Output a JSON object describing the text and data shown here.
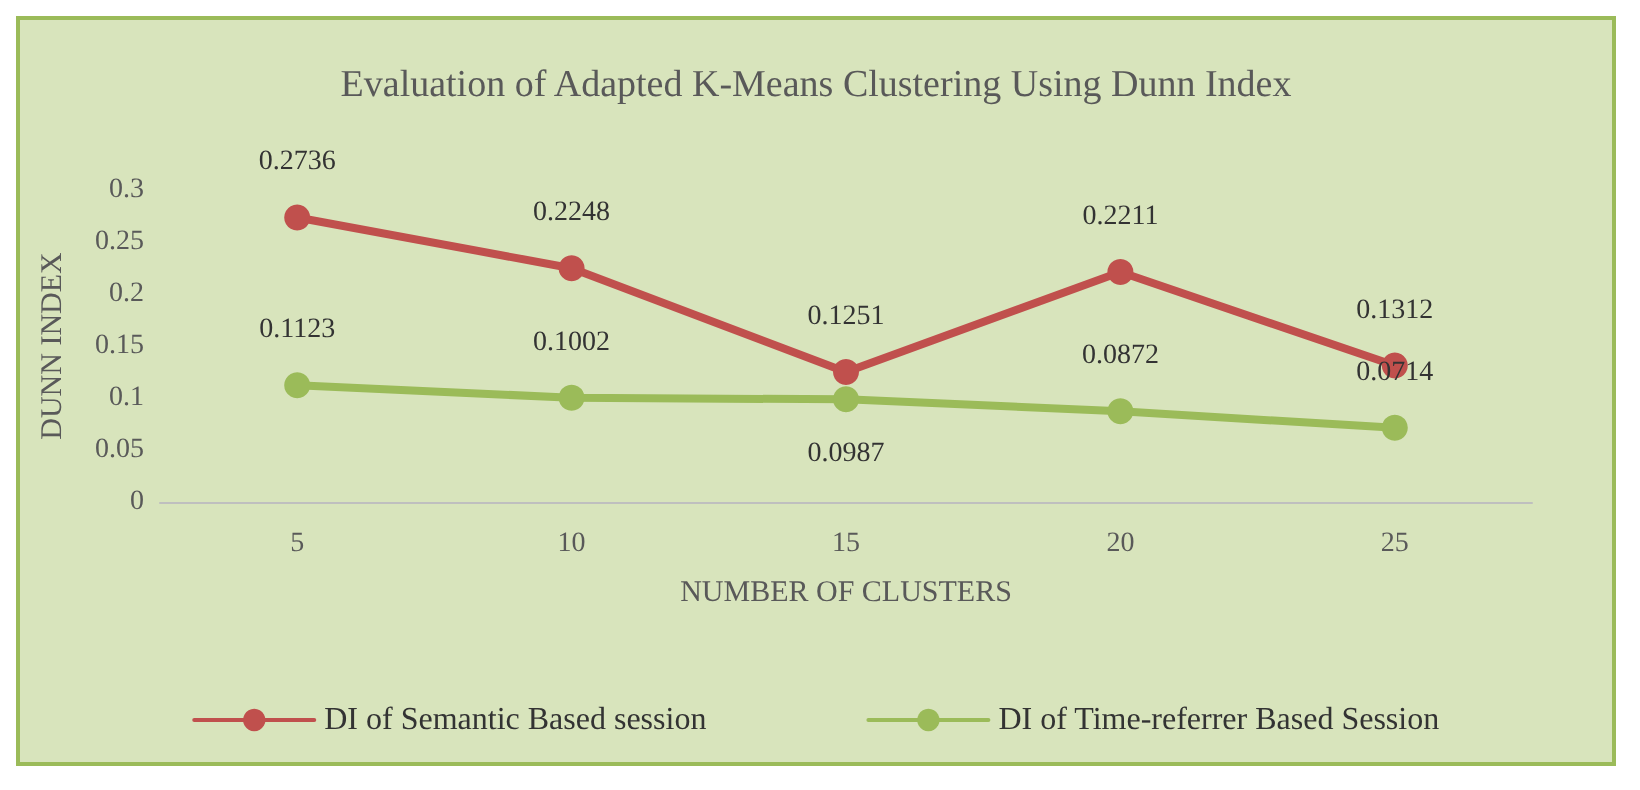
{
  "chart_data": {
    "type": "line",
    "title": "Evaluation of Adapted K-Means Clustering Using Dunn Index",
    "xlabel": "NUMBER OF CLUSTERS",
    "ylabel": "DUNN INDEX",
    "categories": [
      "5",
      "10",
      "15",
      "20",
      "25"
    ],
    "series": [
      {
        "name": "DI of Semantic Based session",
        "color": "#c0504d",
        "values": [
          0.2736,
          0.2248,
          0.1251,
          0.2211,
          0.1312
        ]
      },
      {
        "name": "DI of Time-referrer Based Session",
        "color": "#9bbb59",
        "values": [
          0.1123,
          0.1002,
          0.0987,
          0.0872,
          0.0714
        ]
      }
    ],
    "ylim": [
      0,
      0.3
    ],
    "yticks": [
      0,
      0.05,
      0.1,
      0.15,
      0.2,
      0.25,
      0.3
    ],
    "grid": false,
    "legend": "bottom",
    "marker": "circle",
    "line_style": "solid",
    "data_labels": true
  }
}
